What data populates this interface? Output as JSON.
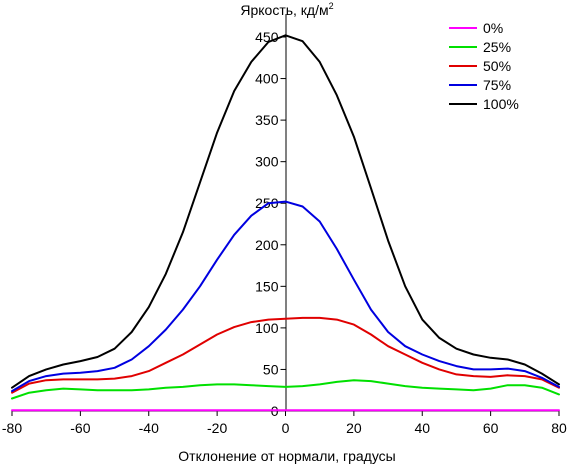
{
  "chart_data": {
    "type": "line",
    "title": "",
    "ylabel_text": "Яркость, кд/м",
    "ylabel_superscript": "2",
    "xlabel": "Отклонение от нормали, градусы",
    "xlim": [
      -80,
      80
    ],
    "ylim": [
      0,
      460
    ],
    "x_ticks": [
      -80,
      -60,
      -40,
      -20,
      0,
      20,
      40,
      60,
      80
    ],
    "y_ticks": [
      0,
      50,
      100,
      150,
      200,
      250,
      300,
      350,
      400,
      450
    ],
    "grid": false,
    "legend_position": "top-right",
    "x": [
      -80,
      -75,
      -70,
      -65,
      -60,
      -55,
      -50,
      -45,
      -40,
      -35,
      -30,
      -25,
      -20,
      -15,
      -10,
      -5,
      0,
      5,
      10,
      15,
      20,
      25,
      30,
      35,
      40,
      45,
      50,
      55,
      60,
      65,
      70,
      75,
      80
    ],
    "series": [
      {
        "name": "0%",
        "color": "#ff00ff",
        "values": [
          1,
          1,
          1,
          1,
          1,
          1,
          1,
          1,
          1,
          1,
          1,
          1,
          1,
          1,
          1,
          1,
          1,
          1,
          1,
          1,
          1,
          1,
          1,
          1,
          1,
          1,
          1,
          1,
          1,
          1,
          1,
          1,
          1
        ]
      },
      {
        "name": "25%",
        "color": "#00e000",
        "values": [
          15,
          22,
          25,
          27,
          26,
          25,
          25,
          25,
          26,
          28,
          29,
          31,
          32,
          32,
          31,
          30,
          29,
          30,
          32,
          35,
          37,
          36,
          33,
          30,
          28,
          27,
          26,
          25,
          27,
          31,
          31,
          28,
          20
        ]
      },
      {
        "name": "50%",
        "color": "#e00000",
        "values": [
          22,
          33,
          37,
          38,
          38,
          38,
          39,
          42,
          48,
          58,
          68,
          80,
          92,
          101,
          107,
          110,
          111,
          112,
          112,
          110,
          104,
          92,
          78,
          68,
          58,
          50,
          44,
          42,
          41,
          43,
          42,
          38,
          28
        ]
      },
      {
        "name": "75%",
        "color": "#0000e0",
        "values": [
          24,
          36,
          42,
          45,
          46,
          48,
          52,
          62,
          78,
          98,
          122,
          150,
          182,
          212,
          235,
          250,
          252,
          246,
          228,
          195,
          158,
          122,
          95,
          78,
          68,
          60,
          54,
          50,
          50,
          51,
          48,
          40,
          29
        ]
      },
      {
        "name": "100%",
        "color": "#000000",
        "values": [
          28,
          42,
          50,
          56,
          60,
          65,
          75,
          95,
          125,
          165,
          215,
          275,
          335,
          385,
          420,
          444,
          452,
          445,
          420,
          380,
          330,
          268,
          205,
          150,
          110,
          88,
          75,
          68,
          64,
          62,
          56,
          45,
          32
        ]
      }
    ]
  }
}
